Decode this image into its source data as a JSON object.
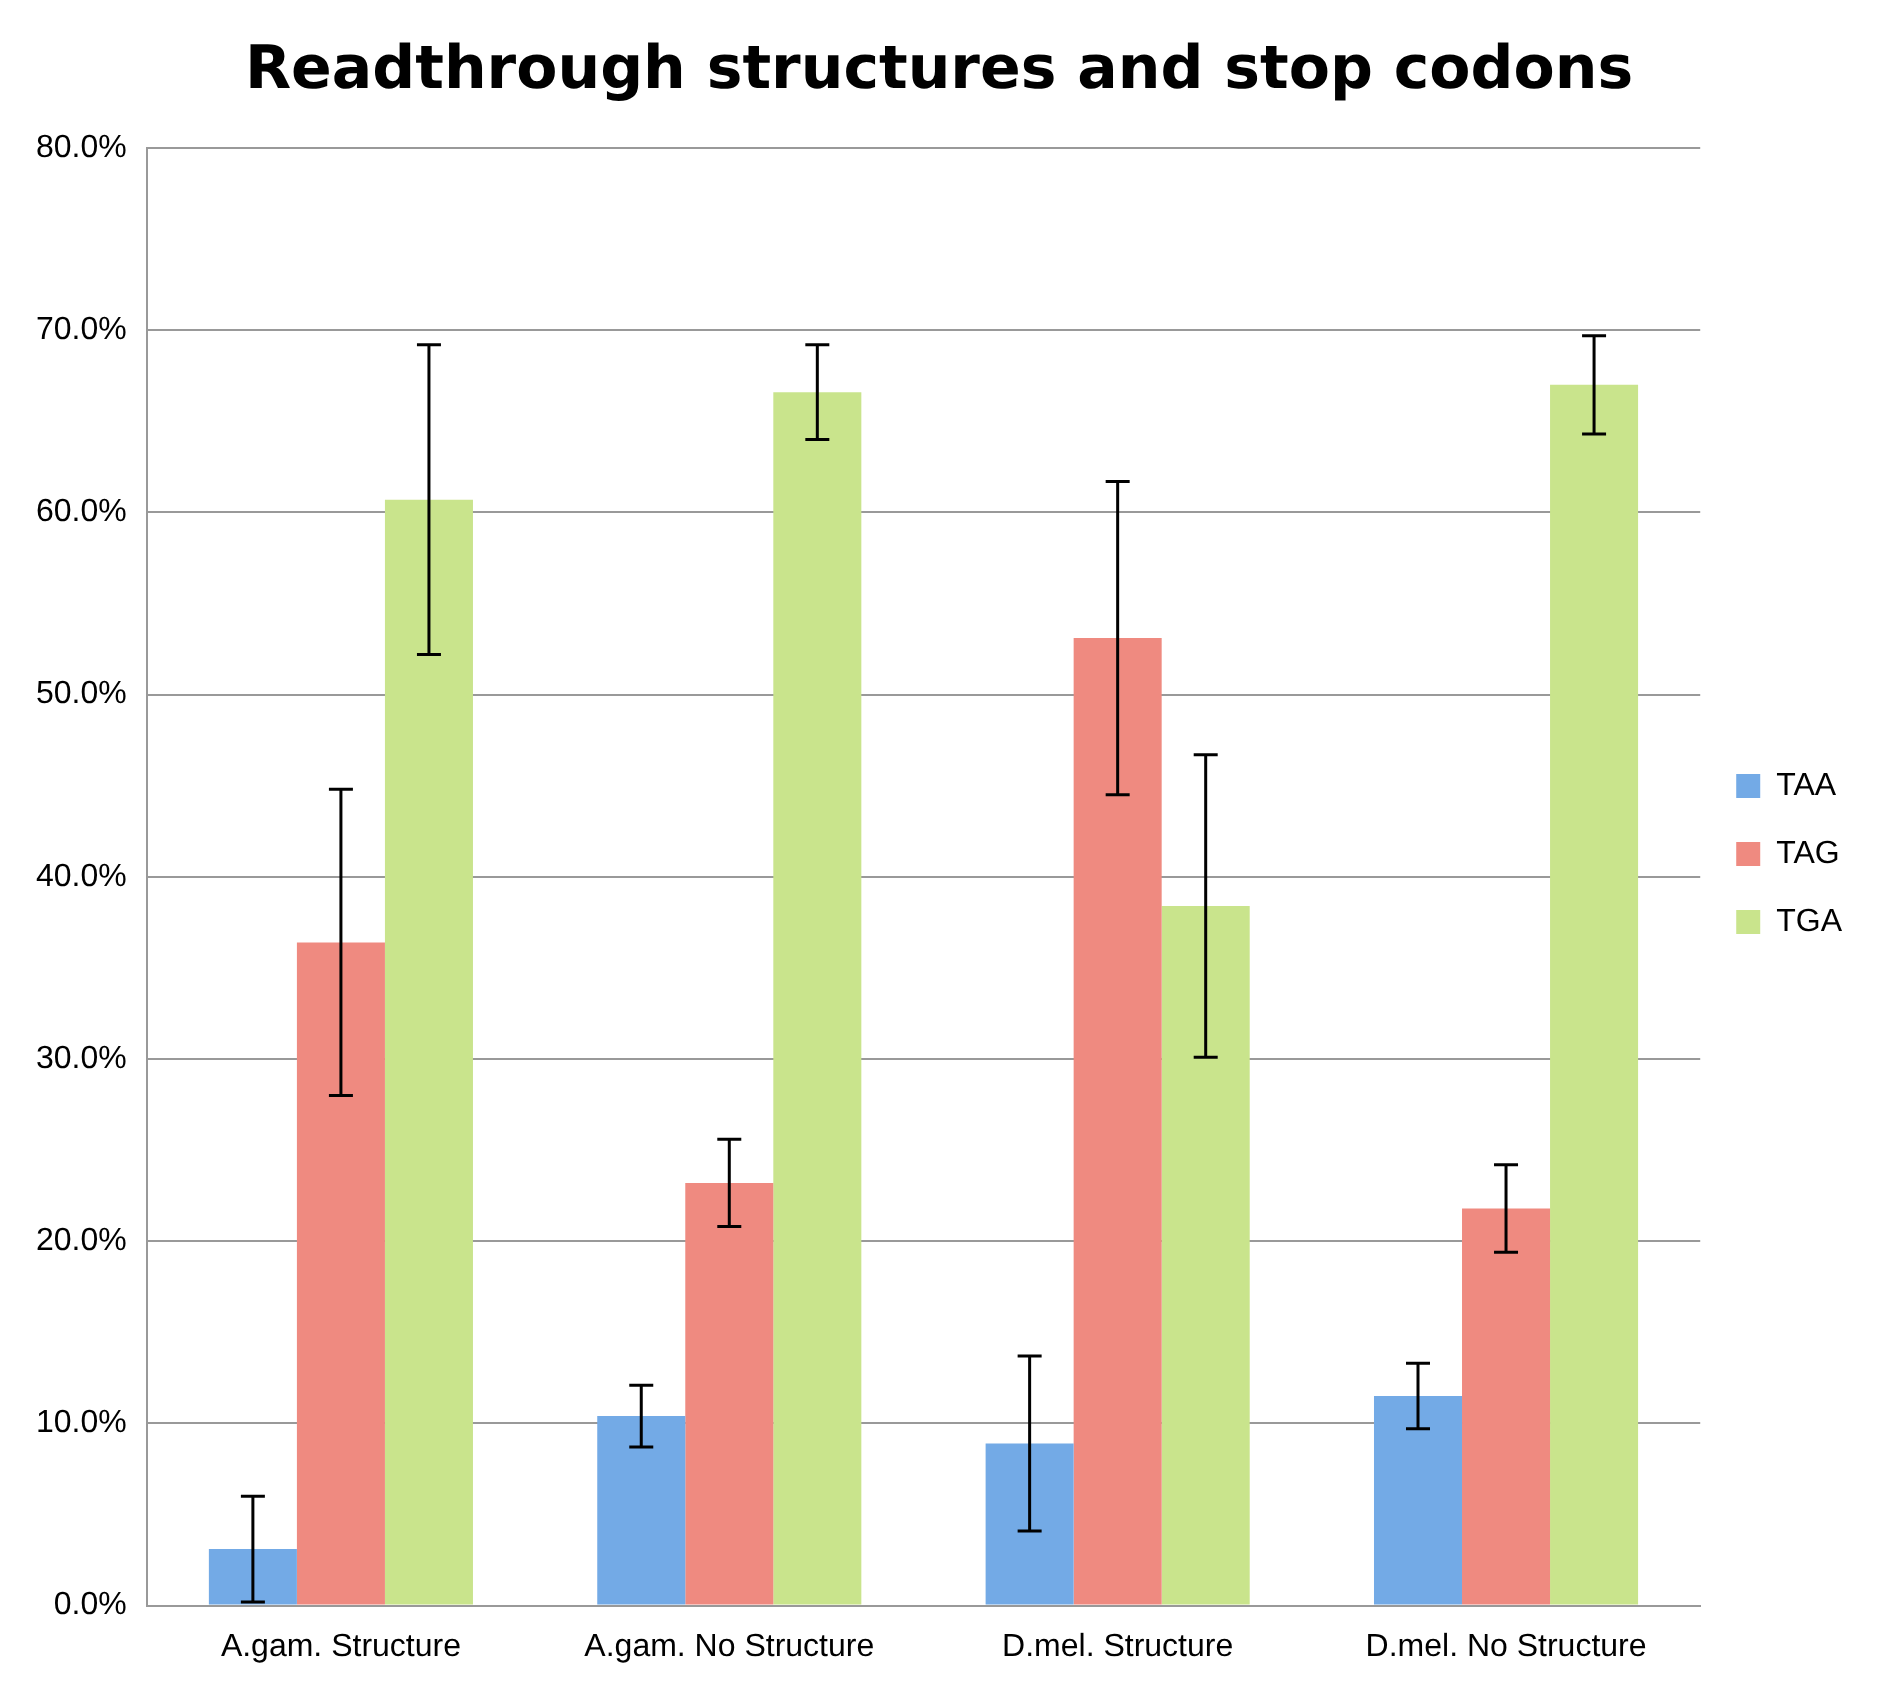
{
  "chart_data": {
    "type": "bar",
    "title": "Readthrough structures and stop codons",
    "categories": [
      "A.gam. Structure",
      "A.gam. No Structure",
      "D.mel. Structure",
      "D.mel. No Structure"
    ],
    "series": [
      {
        "name": "TAA",
        "color": "#73aae6",
        "values": [
          3.1,
          10.4,
          8.9,
          11.5
        ],
        "errors": [
          2.9,
          1.7,
          4.8,
          1.8
        ]
      },
      {
        "name": "TAG",
        "color": "#ef8a80",
        "values": [
          36.4,
          23.2,
          53.1,
          21.8
        ],
        "errors": [
          8.4,
          2.4,
          8.6,
          2.4
        ]
      },
      {
        "name": "TGA",
        "color": "#c9e48c",
        "values": [
          60.7,
          66.6,
          38.4,
          67.0
        ],
        "errors": [
          8.5,
          2.6,
          8.3,
          2.7
        ]
      }
    ],
    "ylim": [
      0,
      80
    ],
    "yticks": [
      {
        "value": 0,
        "label": "0.0%"
      },
      {
        "value": 10,
        "label": "10.0%"
      },
      {
        "value": 20,
        "label": "20.0%"
      },
      {
        "value": 30,
        "label": "30.0%"
      },
      {
        "value": 40,
        "label": "40.0%"
      },
      {
        "value": 50,
        "label": "50.0%"
      },
      {
        "value": 60,
        "label": "60.0%"
      },
      {
        "value": 70,
        "label": "70.0%"
      },
      {
        "value": 80,
        "label": "80.0%"
      }
    ],
    "grid": "y",
    "legend": "right"
  }
}
